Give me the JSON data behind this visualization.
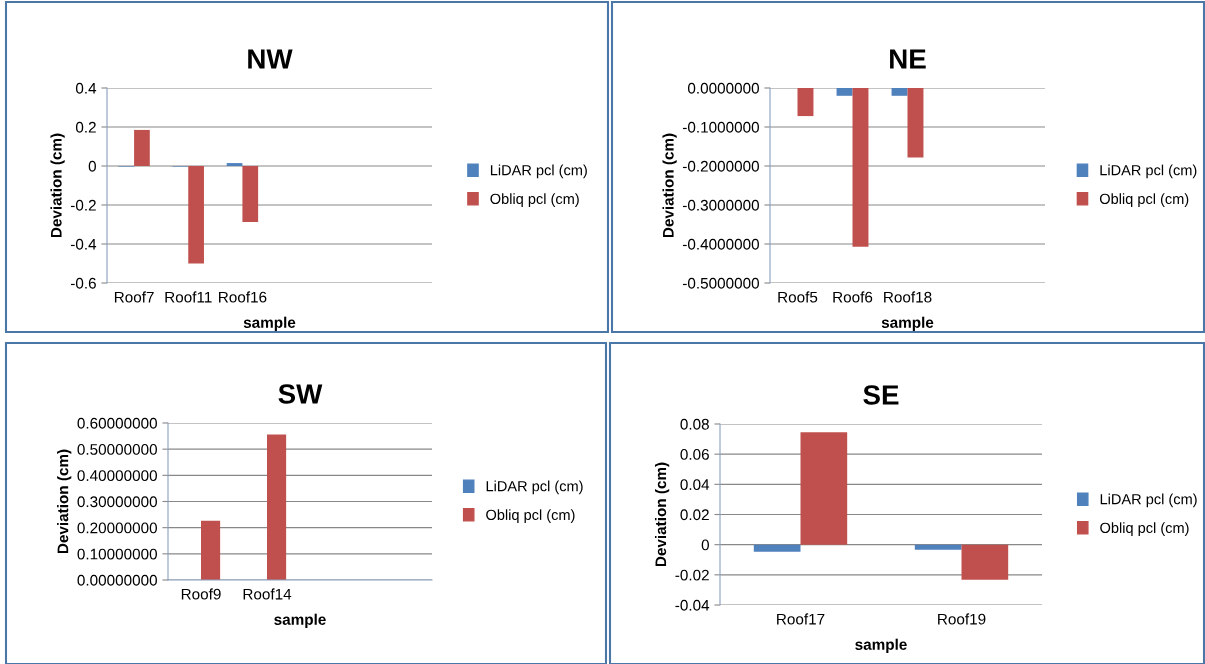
{
  "chart_data": [
    {
      "type": "bar",
      "title": "NW",
      "xlabel": "sample",
      "ylabel": "Deviation (cm)",
      "categories": [
        "Roof7",
        "Roof11",
        "Roof16",
        null,
        null,
        null
      ],
      "series": [
        {
          "name": "LiDAR pcl (cm)",
          "color": "#4f81bd",
          "values": [
            -0.003,
            -0.003,
            0.015,
            null,
            null,
            null
          ]
        },
        {
          "name": "Obliq pcl (cm)",
          "color": "#c0504d",
          "values": [
            0.185,
            -0.5,
            -0.287,
            null,
            null,
            null
          ]
        }
      ],
      "ylim": [
        -0.6,
        0.4
      ],
      "yticks": [
        -0.6,
        -0.4,
        -0.2,
        0,
        0.2,
        0.4
      ],
      "grid": "y",
      "legend": "right"
    },
    {
      "type": "bar",
      "title": "NE",
      "xlabel": "sample",
      "ylabel": "Deviation (cm)",
      "categories": [
        "Roof5",
        "Roof6",
        "Roof18",
        null,
        null
      ],
      "series": [
        {
          "name": "LiDAR pcl (cm)",
          "color": "#4f81bd",
          "values": [
            null,
            -0.02,
            -0.02,
            null,
            null
          ]
        },
        {
          "name": "Obliq pcl (cm)",
          "color": "#c0504d",
          "values": [
            -0.072,
            -0.407,
            -0.178,
            null,
            null
          ]
        }
      ],
      "ylim": [
        -0.5,
        0
      ],
      "yticks": [
        {
          "value": -0.5,
          "label": "-0.5000000"
        },
        {
          "value": -0.4,
          "label": "-0.4000000"
        },
        {
          "value": -0.3,
          "label": "-0.3000000"
        },
        {
          "value": -0.2,
          "label": "-0.2000000"
        },
        {
          "value": -0.1,
          "label": "-0.1000000"
        },
        {
          "value": 0,
          "label": "0.0000000"
        }
      ],
      "grid": "y",
      "legend": "right"
    },
    {
      "type": "bar",
      "title": "SW",
      "xlabel": "sample",
      "ylabel": "Deviation (cm)",
      "categories": [
        "Roof9",
        "Roof14",
        null,
        null
      ],
      "series": [
        {
          "name": "LiDAR pcl (cm)",
          "color": "#4f81bd",
          "values": [
            null,
            null,
            null,
            null
          ]
        },
        {
          "name": "Obliq pcl (cm)",
          "color": "#c0504d",
          "values": [
            0.226,
            0.556,
            null,
            null
          ]
        }
      ],
      "ylim": [
        0,
        0.6
      ],
      "yticks": [
        {
          "value": 0,
          "label": "0.00000000"
        },
        {
          "value": 0.1,
          "label": "0.10000000"
        },
        {
          "value": 0.2,
          "label": "0.20000000"
        },
        {
          "value": 0.3,
          "label": "0.30000000"
        },
        {
          "value": 0.4,
          "label": "0.40000000"
        },
        {
          "value": 0.5,
          "label": "0.50000000"
        },
        {
          "value": 0.6,
          "label": "0.60000000"
        }
      ],
      "grid": "y",
      "legend": "right"
    },
    {
      "type": "bar",
      "title": "SE",
      "xlabel": "sample",
      "ylabel": "Deviation (cm)",
      "categories": [
        "Roof17",
        "Roof19"
      ],
      "series": [
        {
          "name": "LiDAR pcl (cm)",
          "color": "#4f81bd",
          "values": [
            -0.0047,
            -0.0033
          ]
        },
        {
          "name": "Obliq pcl (cm)",
          "color": "#c0504d",
          "values": [
            0.0746,
            -0.0233
          ]
        }
      ],
      "ylim": [
        -0.04,
        0.08
      ],
      "yticks": [
        -0.04,
        -0.02,
        0,
        0.02,
        0.04,
        0.06,
        0.08
      ],
      "grid": "y",
      "legend": "right"
    }
  ]
}
